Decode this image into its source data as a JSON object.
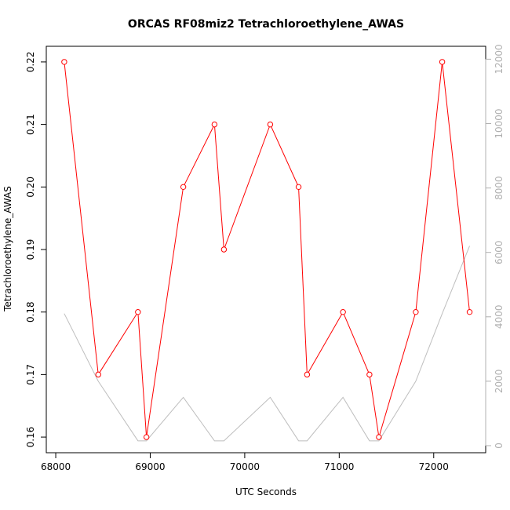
{
  "chart_data": {
    "type": "line",
    "title": "ORCAS RF08miz2 Tetrachloroethylene_AWAS",
    "xlabel": "UTC Seconds",
    "ylabel": "Tetrachloroethylene_AWAS",
    "xlim": [
      67900,
      72550
    ],
    "ylim": [
      0.1575,
      0.2225
    ],
    "y2lim": [
      -220,
      12400
    ],
    "x_ticks": [
      68000,
      69000,
      70000,
      71000,
      72000
    ],
    "y_ticks": [
      0.16,
      0.17,
      0.18,
      0.19,
      0.2,
      0.21,
      0.22
    ],
    "y_tick_labels": [
      "0.16",
      "0.17",
      "0.18",
      "0.19",
      "0.20",
      "0.21",
      "0.22"
    ],
    "y2_ticks": [
      0,
      2000,
      4000,
      6000,
      8000,
      10000,
      12000
    ],
    "grid": false,
    "series": [
      {
        "axis": "left",
        "color": "#ff0000",
        "markers": "open-circle",
        "x": [
          68090,
          68450,
          68870,
          68960,
          69350,
          69680,
          69780,
          70270,
          70570,
          70660,
          71040,
          71320,
          71420,
          71810,
          72090,
          72380
        ],
        "values": [
          0.22,
          0.17,
          0.18,
          0.16,
          0.2,
          0.21,
          0.19,
          0.21,
          0.2,
          0.17,
          0.18,
          0.17,
          0.16,
          0.18,
          0.22,
          0.18
        ]
      },
      {
        "axis": "right",
        "color": "#bebebe",
        "markers": "none",
        "x": [
          68090,
          68450,
          68870,
          68960,
          69350,
          69680,
          69780,
          70270,
          70570,
          70660,
          71040,
          71320,
          71420,
          71810,
          72090,
          72380
        ],
        "values": [
          4100,
          2000,
          150,
          150,
          1500,
          150,
          150,
          1500,
          150,
          150,
          1500,
          150,
          150,
          2000,
          4100,
          6200
        ]
      }
    ]
  }
}
